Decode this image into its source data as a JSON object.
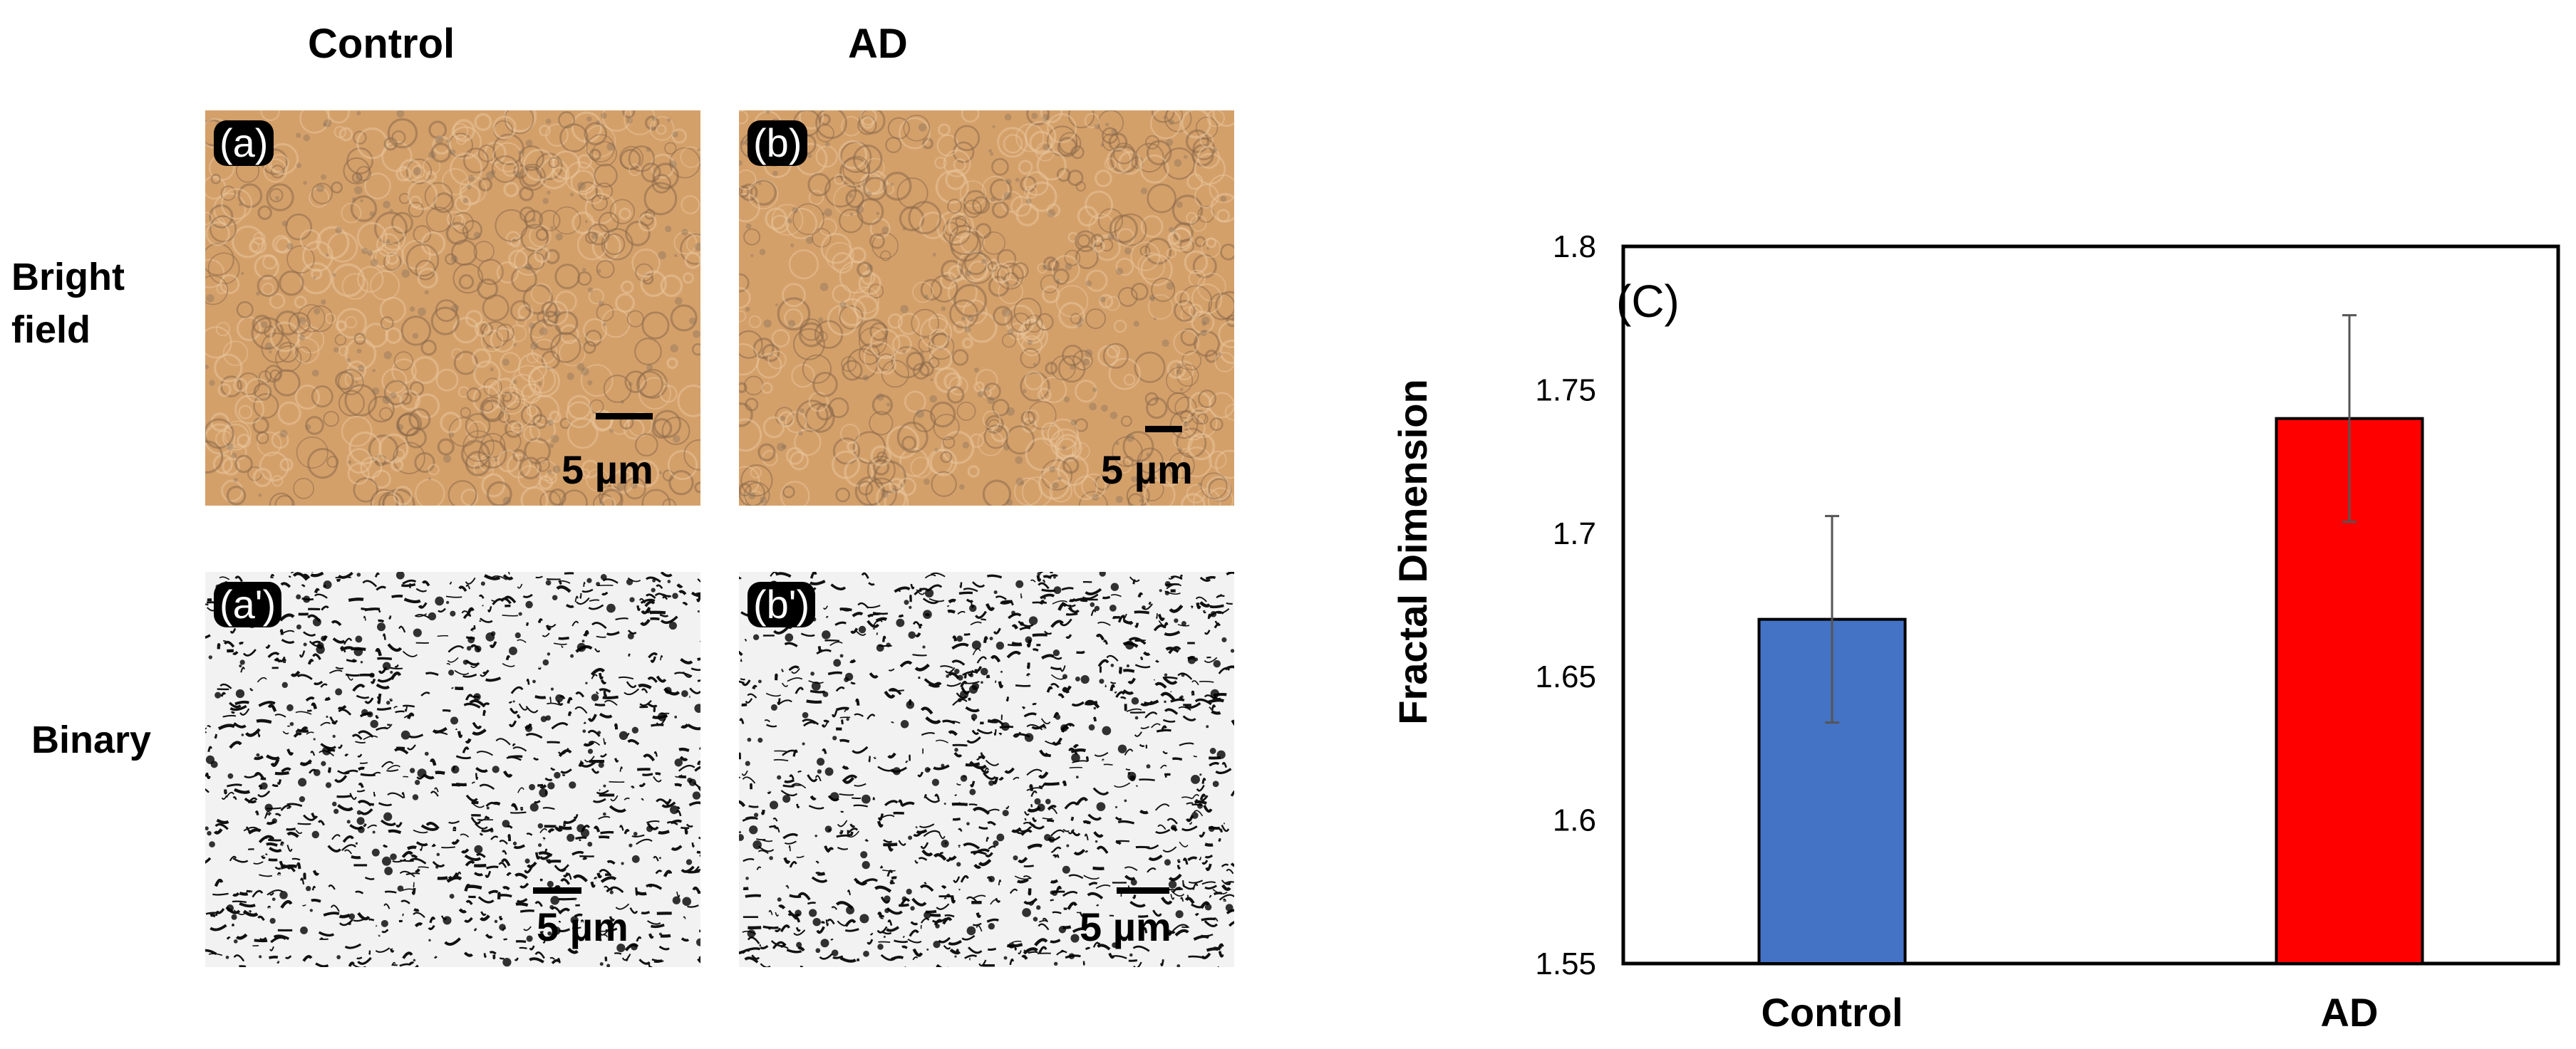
{
  "figure": {
    "column_titles": [
      "Control",
      "AD"
    ],
    "row_titles": [
      [
        "Bright",
        "field"
      ],
      [
        "Binary"
      ]
    ],
    "panels": [
      {
        "label": "(a)",
        "scale": "5 µm",
        "kind": "bright"
      },
      {
        "label": "(b)",
        "scale": "5 µm",
        "kind": "bright"
      },
      {
        "label": "(a')",
        "scale": "5 µm",
        "kind": "binary"
      },
      {
        "label": "(b')",
        "scale": "5 µm",
        "kind": "binary"
      }
    ],
    "colors": {
      "bright_bg": "#d4a06a",
      "binary_bg": "#f2f2f2"
    }
  },
  "chart_data": {
    "type": "bar",
    "panel_label": "(C)",
    "categories": [
      "Control",
      "AD"
    ],
    "values": [
      1.67,
      1.74
    ],
    "errors": [
      0.036,
      0.036
    ],
    "colors": [
      "#4472c4",
      "#ff0000"
    ],
    "ylabel": "Fractal Dimension",
    "xlabel": "",
    "ylim": [
      1.55,
      1.8
    ],
    "yticks": [
      "1.55",
      "1.6",
      "1.65",
      "1.7",
      "1.75",
      "1.8"
    ],
    "ytick_values": [
      1.55,
      1.6,
      1.65,
      1.7,
      1.75,
      1.8
    ],
    "grid": false
  }
}
